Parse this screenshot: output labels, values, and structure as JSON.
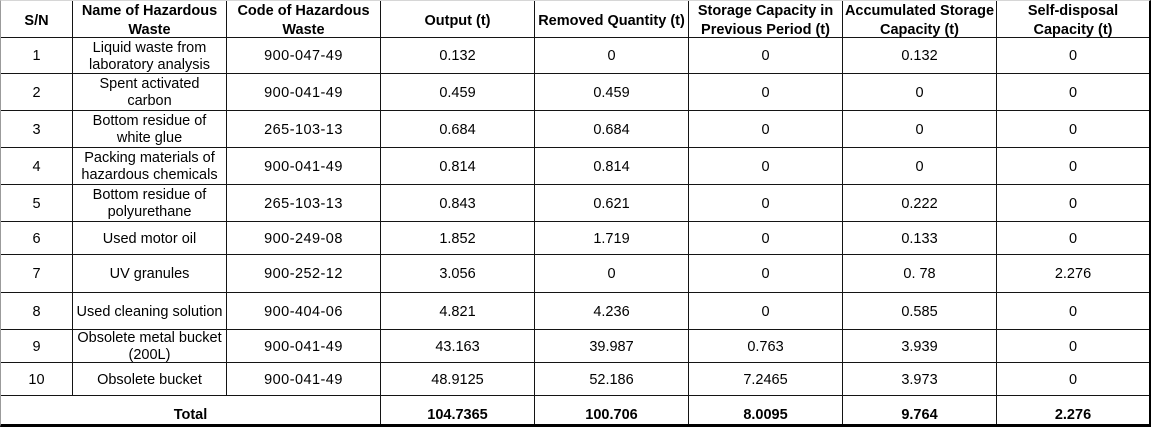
{
  "table": {
    "columns": [
      {
        "key": "sn",
        "label": "S/N"
      },
      {
        "key": "name",
        "label": "Name of Hazardous\nWaste"
      },
      {
        "key": "code",
        "label": "Code of Hazardous\nWaste"
      },
      {
        "key": "output",
        "label": "Output (t)"
      },
      {
        "key": "removed",
        "label": "Removed Quantity (t)"
      },
      {
        "key": "storage_prev",
        "label": "Storage Capacity in\nPrevious Period (t)"
      },
      {
        "key": "accumulated",
        "label": "Accumulated Storage\nCapacity (t)"
      },
      {
        "key": "self_disposal",
        "label": "Self-disposal\nCapacity (t)"
      }
    ],
    "rows": [
      {
        "sn": "1",
        "name": "Liquid waste from\nlaboratory analysis",
        "code": "900-047-49",
        "output": "0.132",
        "removed": "0",
        "storage_prev": "0",
        "accumulated": "0.132",
        "self_disposal": "0"
      },
      {
        "sn": "2",
        "name": "Spent activated\ncarbon",
        "code": "900-041-49",
        "output": "0.459",
        "removed": "0.459",
        "storage_prev": "0",
        "accumulated": "0",
        "self_disposal": "0"
      },
      {
        "sn": "3",
        "name": "Bottom residue of\nwhite glue",
        "code": "265-103-13",
        "output": "0.684",
        "removed": "0.684",
        "storage_prev": "0",
        "accumulated": "0",
        "self_disposal": "0"
      },
      {
        "sn": "4",
        "name": "Packing materials of\nhazardous chemicals",
        "code": "900-041-49",
        "output": "0.814",
        "removed": "0.814",
        "storage_prev": "0",
        "accumulated": "0",
        "self_disposal": "0"
      },
      {
        "sn": "5",
        "name": "Bottom residue of\npolyurethane",
        "code": "265-103-13",
        "output": "0.843",
        "removed": "0.621",
        "storage_prev": "0",
        "accumulated": "0.222",
        "self_disposal": "0"
      },
      {
        "sn": "6",
        "name": "Used motor oil",
        "code": "900-249-08",
        "output": "1.852",
        "removed": "1.719",
        "storage_prev": "0",
        "accumulated": "0.133",
        "self_disposal": "0"
      },
      {
        "sn": "7",
        "name": "UV granules",
        "code": "900-252-12",
        "output": "3.056",
        "removed": "0",
        "storage_prev": "0",
        "accumulated": "0. 78",
        "self_disposal": "2.276"
      },
      {
        "sn": "8",
        "name": "Used cleaning solution",
        "code": "900-404-06",
        "output": "4.821",
        "removed": "4.236",
        "storage_prev": "0",
        "accumulated": "0.585",
        "self_disposal": "0"
      },
      {
        "sn": "9",
        "name": "Obsolete metal bucket\n(200L)",
        "code": "900-041-49",
        "output": "43.163",
        "removed": "39.987",
        "storage_prev": "0.763",
        "accumulated": "3.939",
        "self_disposal": "0"
      },
      {
        "sn": "10",
        "name": "Obsolete bucket",
        "code": "900-041-49",
        "output": "48.9125",
        "removed": "52.186",
        "storage_prev": "7.2465",
        "accumulated": "3.973",
        "self_disposal": "0"
      }
    ],
    "total": {
      "label": "Total",
      "output": "104.7365",
      "removed": "100.706",
      "storage_prev": "8.0095",
      "accumulated": "9.764",
      "self_disposal": "2.276"
    }
  },
  "colors": {
    "grid_line": "#141414",
    "outer_bottom_border": "#000000",
    "outer_right_border": "#000000",
    "outer_left_border": "#9b9b9b",
    "outer_top_border": "#d6d6d6",
    "text": "#000000",
    "background": "#ffffff"
  }
}
